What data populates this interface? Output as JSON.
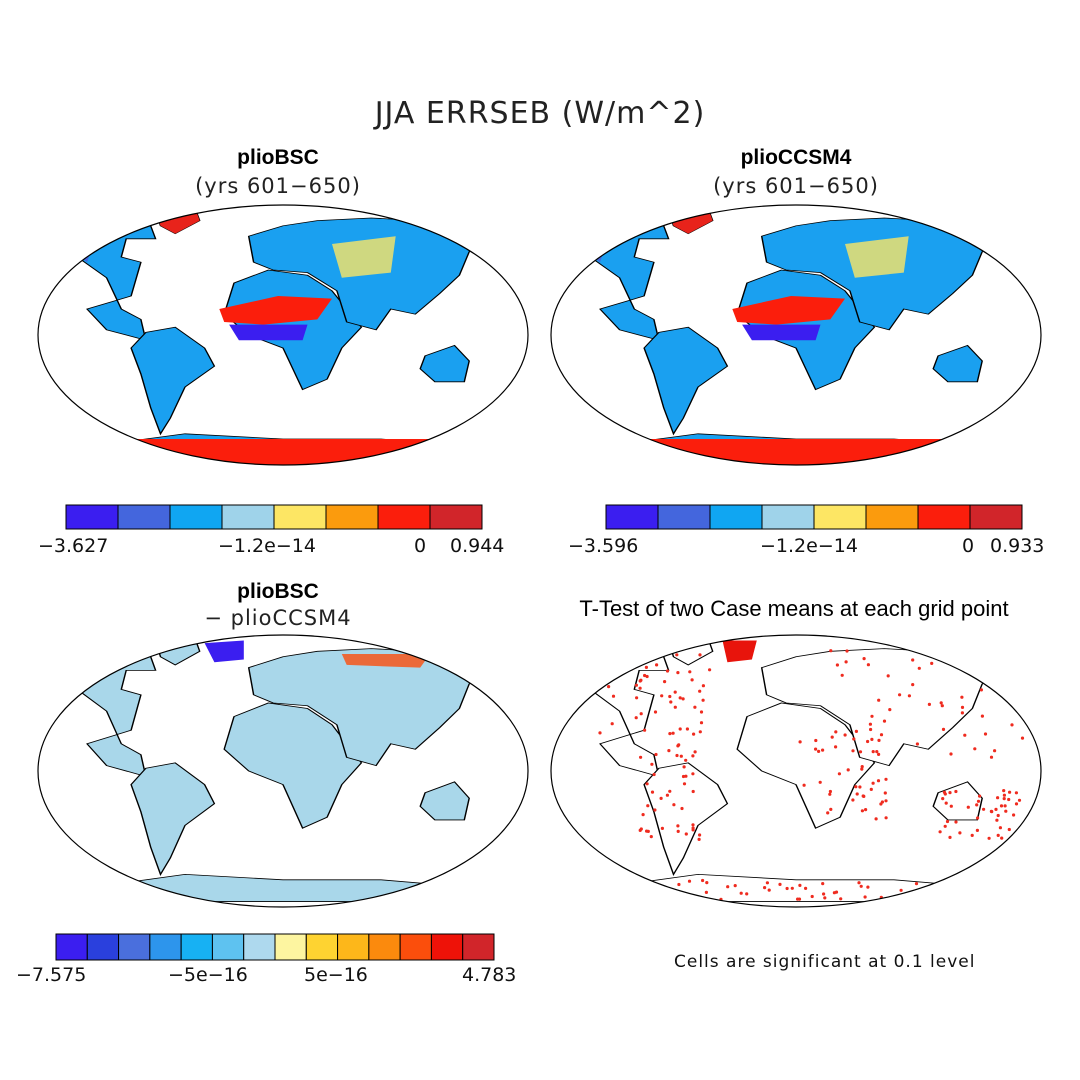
{
  "figure": {
    "title": "JJA ERRSEB (W/m^2)",
    "note": "Cells are significant at 0.1 level"
  },
  "panels": [
    {
      "title": "plioBSC",
      "subtitle": "(yrs 601−650)",
      "kind": "field"
    },
    {
      "title": "plioCCSM4",
      "subtitle": "(yrs 601−650)",
      "kind": "field"
    },
    {
      "title": "plioBSC",
      "subtitle": "− plioCCSM4",
      "kind": "difference"
    },
    {
      "title": "T-Test of two Case means at each grid point",
      "subtitle": "",
      "kind": "significance"
    }
  ],
  "colorbars": [
    {
      "colors": [
        "#3b1ef0",
        "#4466dd",
        "#10a6f2",
        "#9fd3ea",
        "#fde664",
        "#fb9b0d",
        "#fb1e0c",
        "#d1252a"
      ],
      "tick_labels": [
        "−3.627",
        "−1.2e−14",
        "0",
        "0.944"
      ]
    },
    {
      "colors": [
        "#3b1ef0",
        "#4466dd",
        "#10a6f2",
        "#9fd3ea",
        "#fde664",
        "#fb9b0d",
        "#fb1e0c",
        "#d1252a"
      ],
      "tick_labels": [
        "−3.596",
        "−1.2e−14",
        "0",
        "0.933"
      ]
    },
    {
      "colors": [
        "#3b1ef0",
        "#2a40dd",
        "#4a6fdd",
        "#2d95ec",
        "#17b1f3",
        "#5ec2f0",
        "#aed9ee",
        "#fdf5a0",
        "#fed331",
        "#fdb71a",
        "#fb8a0d",
        "#fb4e0c",
        "#ee1208",
        "#d1252a"
      ],
      "tick_labels": [
        "−7.575",
        "−5e−16",
        "5e−16",
        "4.783"
      ]
    }
  ]
}
